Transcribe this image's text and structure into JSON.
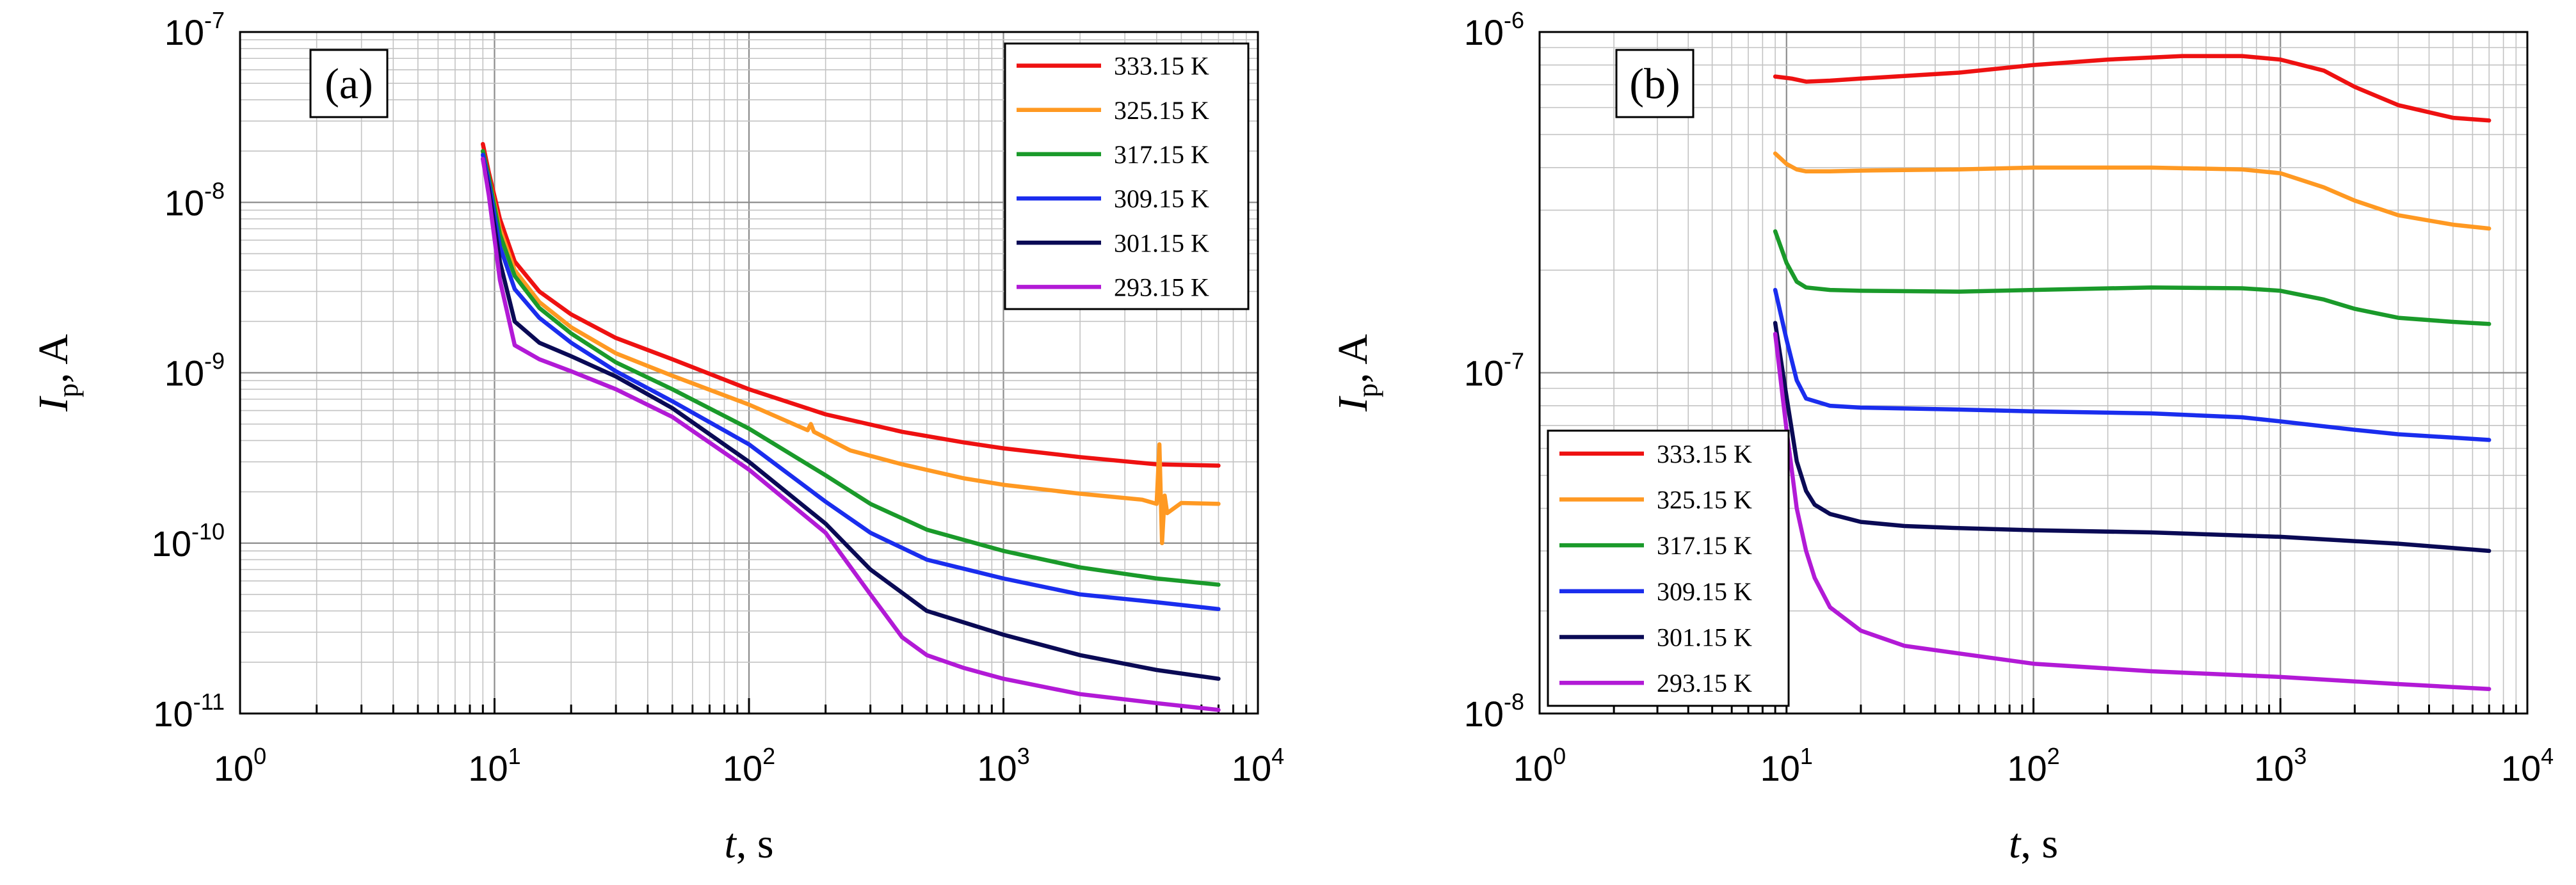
{
  "chart_data": [
    {
      "panel_label": "(a)",
      "type": "line",
      "xscale": "log",
      "yscale": "log",
      "xlim": [
        1,
        10000
      ],
      "ylim": [
        1e-11,
        1e-07
      ],
      "xlabel": {
        "var": "t",
        "rest": ", s"
      },
      "ylabel": {
        "var": "I",
        "sub": "p",
        "rest": ", A"
      },
      "x_ticks": [
        {
          "base": "10",
          "exp": "0",
          "value": 1
        },
        {
          "base": "10",
          "exp": "1",
          "value": 10
        },
        {
          "base": "10",
          "exp": "2",
          "value": 100
        },
        {
          "base": "10",
          "exp": "3",
          "value": 1000
        },
        {
          "base": "10",
          "exp": "4",
          "value": 10000
        }
      ],
      "y_ticks": [
        {
          "base": "10",
          "exp": "-11",
          "value": 1e-11
        },
        {
          "base": "10",
          "exp": "-10",
          "value": 1e-10
        },
        {
          "base": "10",
          "exp": "-9",
          "value": 1e-09
        },
        {
          "base": "10",
          "exp": "-8",
          "value": 1e-08
        },
        {
          "base": "10",
          "exp": "-7",
          "value": 1e-07
        }
      ],
      "grid": true,
      "legend_position": "top-right",
      "series": [
        {
          "name": "333.15 K",
          "color": "#ee1111",
          "x": [
            9,
            9.5,
            10.5,
            12,
            15,
            20,
            30,
            50,
            100,
            200,
            400,
            700,
            1000,
            2000,
            4000,
            7000
          ],
          "y": [
            2.2e-08,
            1.5e-08,
            8e-09,
            4.5e-09,
            3e-09,
            2.2e-09,
            1.6e-09,
            1.2e-09,
            8e-10,
            5.7e-10,
            4.5e-10,
            3.9e-10,
            3.6e-10,
            3.2e-10,
            2.9e-10,
            2.85e-10
          ]
        },
        {
          "name": "325.15 K",
          "color": "#ff9922",
          "x": [
            9,
            9.5,
            10.5,
            12,
            15,
            20,
            30,
            50,
            100,
            170,
            175,
            180,
            250,
            400,
            700,
            1000,
            2000,
            3500,
            4000,
            4100,
            4200,
            4300,
            4400,
            5000,
            7000
          ],
          "y": [
            2e-08,
            1.4e-08,
            7e-09,
            4e-09,
            2.6e-09,
            1.85e-09,
            1.3e-09,
            9.6e-10,
            6.5e-10,
            4.6e-10,
            5e-10,
            4.5e-10,
            3.5e-10,
            2.9e-10,
            2.4e-10,
            2.2e-10,
            1.95e-10,
            1.8e-10,
            1.7e-10,
            3.8e-10,
            1e-10,
            1.9e-10,
            1.5e-10,
            1.72e-10,
            1.7e-10
          ]
        },
        {
          "name": "317.15 K",
          "color": "#1a9a2a",
          "x": [
            9,
            9.5,
            10.5,
            12,
            15,
            20,
            30,
            50,
            100,
            200,
            300,
            500,
            1000,
            2000,
            4000,
            7000
          ],
          "y": [
            2e-08,
            1.4e-08,
            6.5e-09,
            3.7e-09,
            2.4e-09,
            1.7e-09,
            1.15e-09,
            8e-10,
            4.7e-10,
            2.5e-10,
            1.7e-10,
            1.2e-10,
            9e-11,
            7.2e-11,
            6.2e-11,
            5.7e-11
          ]
        },
        {
          "name": "309.15 K",
          "color": "#1a2dee",
          "x": [
            9,
            9.5,
            10.5,
            12,
            15,
            20,
            30,
            50,
            100,
            200,
            300,
            500,
            1000,
            2000,
            4000,
            7000
          ],
          "y": [
            1.9e-08,
            1.3e-08,
            5.5e-09,
            3.1e-09,
            2.1e-09,
            1.5e-09,
            1.02e-09,
            6.8e-10,
            3.8e-10,
            1.75e-10,
            1.15e-10,
            8e-11,
            6.2e-11,
            5e-11,
            4.5e-11,
            4.1e-11
          ]
        },
        {
          "name": "301.15 K",
          "color": "#0a0a55",
          "x": [
            9,
            9.5,
            10.5,
            12,
            15,
            20,
            30,
            50,
            100,
            200,
            300,
            500,
            1000,
            2000,
            4000,
            7000
          ],
          "y": [
            1.8e-08,
            1.2e-08,
            4.5e-09,
            2e-09,
            1.5e-09,
            1.25e-09,
            9.5e-10,
            6.2e-10,
            3e-10,
            1.3e-10,
            7e-11,
            4e-11,
            2.9e-11,
            2.2e-11,
            1.8e-11,
            1.6e-11
          ]
        },
        {
          "name": "293.15 K",
          "color": "#b21ad6",
          "x": [
            9,
            9.5,
            10.5,
            12,
            15,
            20,
            30,
            50,
            100,
            200,
            300,
            400,
            500,
            700,
            1000,
            2000,
            4000,
            7000
          ],
          "y": [
            1.8e-08,
            1.1e-08,
            3.5e-09,
            1.45e-09,
            1.2e-09,
            1.02e-09,
            8e-10,
            5.5e-10,
            2.7e-10,
            1.15e-10,
            5e-11,
            2.8e-11,
            2.2e-11,
            1.85e-11,
            1.6e-11,
            1.3e-11,
            1.15e-11,
            1.05e-11
          ]
        }
      ]
    },
    {
      "panel_label": "(b)",
      "type": "line",
      "xscale": "log",
      "yscale": "log",
      "xlim": [
        1,
        10000
      ],
      "ylim": [
        1e-08,
        1e-06
      ],
      "xlabel": {
        "var": "t",
        "rest": ", s"
      },
      "ylabel": {
        "var": "I",
        "sub": "p",
        "rest": ", A"
      },
      "x_ticks": [
        {
          "base": "10",
          "exp": "0",
          "value": 1
        },
        {
          "base": "10",
          "exp": "1",
          "value": 10
        },
        {
          "base": "10",
          "exp": "2",
          "value": 100
        },
        {
          "base": "10",
          "exp": "3",
          "value": 1000
        },
        {
          "base": "10",
          "exp": "4",
          "value": 10000
        }
      ],
      "y_ticks": [
        {
          "base": "10",
          "exp": "-8",
          "value": 1e-08
        },
        {
          "base": "10",
          "exp": "-7",
          "value": 1e-07
        },
        {
          "base": "10",
          "exp": "-6",
          "value": 1e-06
        }
      ],
      "grid": true,
      "legend_position": "bottom-left",
      "series": [
        {
          "name": "333.15 K",
          "color": "#ee1111",
          "x": [
            9,
            10.5,
            12,
            15,
            20,
            50,
            100,
            200,
            400,
            700,
            1000,
            1500,
            2000,
            3000,
            5000,
            7000
          ],
          "y": [
            7.4e-07,
            7.3e-07,
            7.15e-07,
            7.2e-07,
            7.3e-07,
            7.6e-07,
            8e-07,
            8.3e-07,
            8.5e-07,
            8.5e-07,
            8.3e-07,
            7.7e-07,
            6.9e-07,
            6.1e-07,
            5.6e-07,
            5.5e-07
          ]
        },
        {
          "name": "325.15 K",
          "color": "#ff9922",
          "x": [
            9,
            10,
            11,
            12,
            15,
            20,
            50,
            100,
            300,
            700,
            1000,
            1500,
            2000,
            3000,
            5000,
            7000
          ],
          "y": [
            4.4e-07,
            4.1e-07,
            3.95e-07,
            3.9e-07,
            3.9e-07,
            3.92e-07,
            3.95e-07,
            4e-07,
            4e-07,
            3.95e-07,
            3.85e-07,
            3.5e-07,
            3.2e-07,
            2.9e-07,
            2.72e-07,
            2.65e-07
          ]
        },
        {
          "name": "317.15 K",
          "color": "#1a9a2a",
          "x": [
            9,
            10,
            11,
            12,
            15,
            20,
            50,
            100,
            300,
            700,
            1000,
            1500,
            2000,
            3000,
            5000,
            7000
          ],
          "y": [
            2.6e-07,
            2.1e-07,
            1.85e-07,
            1.78e-07,
            1.75e-07,
            1.74e-07,
            1.73e-07,
            1.75e-07,
            1.78e-07,
            1.77e-07,
            1.74e-07,
            1.64e-07,
            1.54e-07,
            1.45e-07,
            1.41e-07,
            1.39e-07
          ]
        },
        {
          "name": "309.15 K",
          "color": "#1a2dee",
          "x": [
            9,
            10,
            11,
            12,
            15,
            20,
            50,
            100,
            300,
            700,
            1000,
            2000,
            3000,
            5000,
            7000
          ],
          "y": [
            1.75e-07,
            1.25e-07,
            9.5e-08,
            8.4e-08,
            8e-08,
            7.9e-08,
            7.8e-08,
            7.7e-08,
            7.6e-08,
            7.4e-08,
            7.2e-08,
            6.8e-08,
            6.6e-08,
            6.45e-08,
            6.35e-08
          ]
        },
        {
          "name": "301.15 K",
          "color": "#0a0a55",
          "x": [
            9,
            10,
            11,
            12,
            13,
            15,
            20,
            30,
            50,
            100,
            300,
            1000,
            3000,
            7000
          ],
          "y": [
            1.4e-07,
            8.5e-08,
            5.5e-08,
            4.5e-08,
            4.1e-08,
            3.85e-08,
            3.65e-08,
            3.55e-08,
            3.5e-08,
            3.45e-08,
            3.4e-08,
            3.3e-08,
            3.15e-08,
            3e-08
          ]
        },
        {
          "name": "293.15 K",
          "color": "#b21ad6",
          "x": [
            9,
            10,
            11,
            12,
            13,
            15,
            20,
            30,
            50,
            100,
            300,
            1000,
            3000,
            7000
          ],
          "y": [
            1.3e-07,
            6.8e-08,
            4e-08,
            3e-08,
            2.5e-08,
            2.05e-08,
            1.75e-08,
            1.58e-08,
            1.5e-08,
            1.4e-08,
            1.33e-08,
            1.28e-08,
            1.22e-08,
            1.18e-08
          ]
        }
      ]
    }
  ]
}
